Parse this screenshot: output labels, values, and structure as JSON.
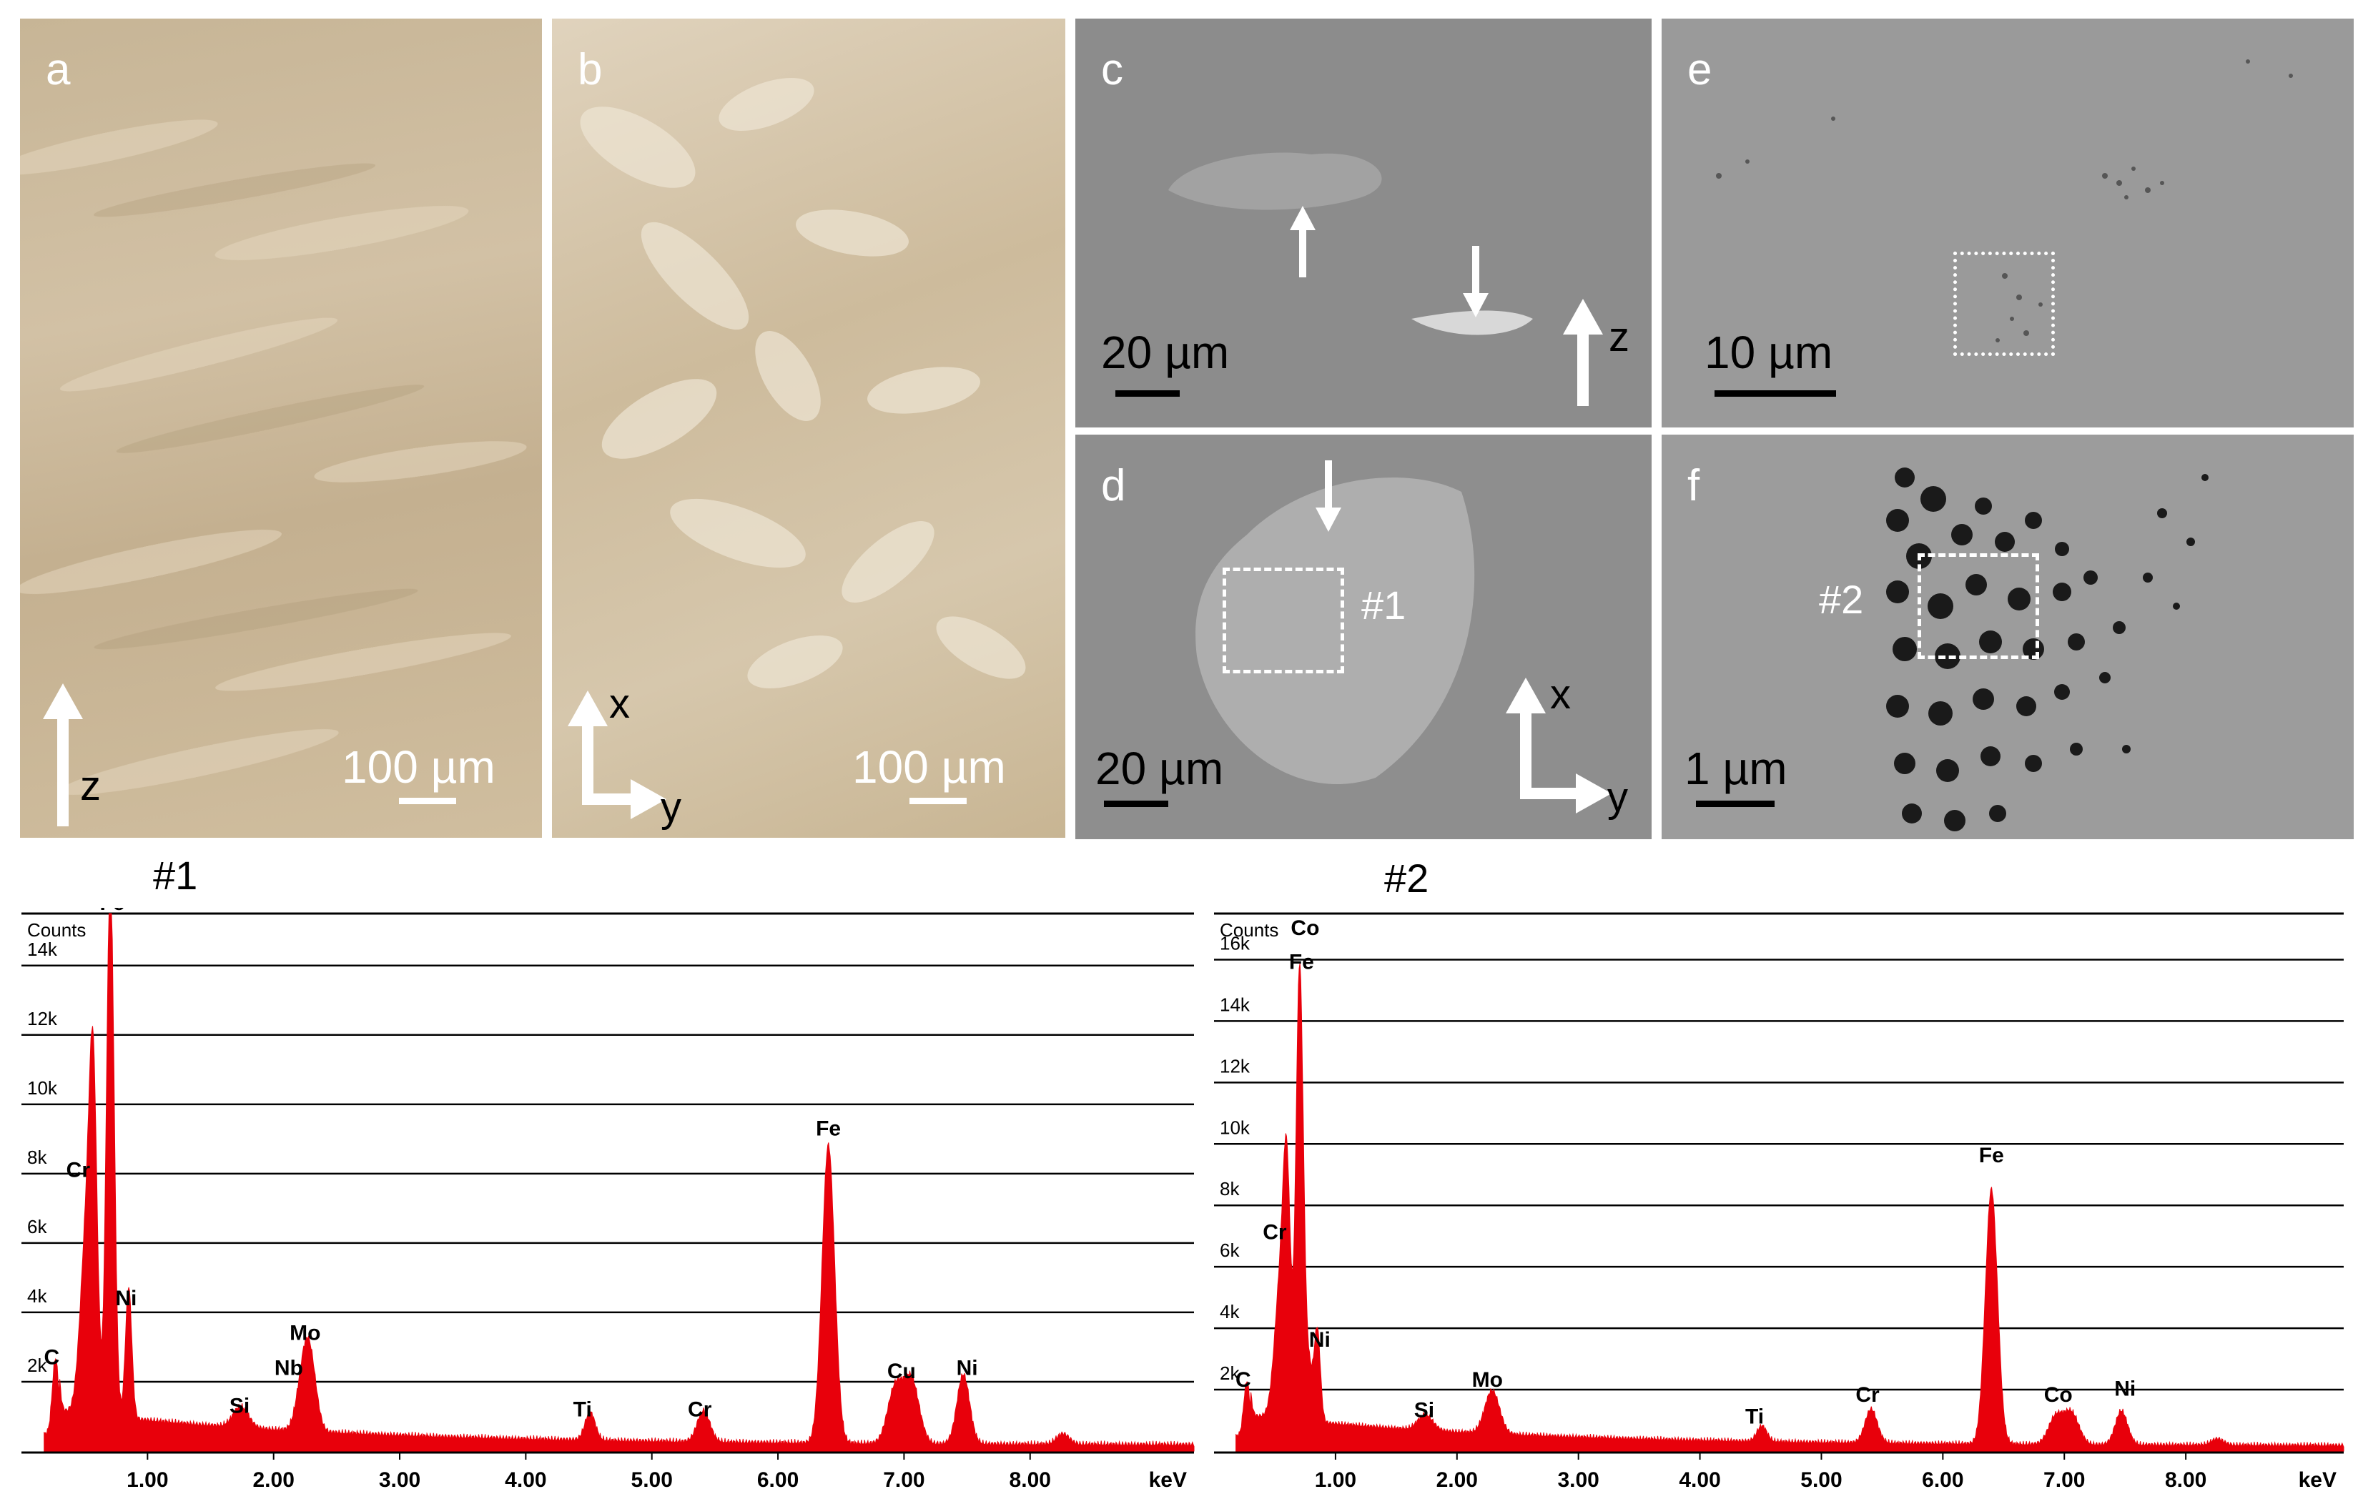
{
  "panels": {
    "a": {
      "label": "a",
      "scale": "100 µm",
      "axis_z": "z"
    },
    "b": {
      "label": "b",
      "scale": "100 µm",
      "axis_x": "x",
      "axis_y": "y"
    },
    "c": {
      "label": "c",
      "scale": "20 µm",
      "axis_z": "z"
    },
    "d": {
      "label": "d",
      "scale": "20 µm",
      "axis_x": "x",
      "axis_y": "y",
      "region": "#1"
    },
    "e": {
      "label": "e",
      "scale": "10 µm"
    },
    "f": {
      "label": "f",
      "scale": "1 µm",
      "region": "#2"
    }
  },
  "colors": {
    "spectrum": "#e8000b",
    "optical": "#cdb99a",
    "sem": "#8e8e8e"
  },
  "chart_data": [
    {
      "type": "area",
      "title": "#1",
      "ylabel": "Counts",
      "xlabel": "keV",
      "xlim": [
        0,
        9.3
      ],
      "ylim": [
        0,
        15.5
      ],
      "y_unit": "k",
      "y_ticks": [
        "2k",
        "4k",
        "6k",
        "8k",
        "10k",
        "12k",
        "14k"
      ],
      "y_tick_values": [
        2,
        4,
        6,
        8,
        10,
        12,
        14
      ],
      "x_ticks": [
        "1.00",
        "2.00",
        "3.00",
        "4.00",
        "5.00",
        "6.00",
        "7.00",
        "8.00"
      ],
      "x_tick_values": [
        1,
        2,
        3,
        4,
        5,
        6,
        7,
        8
      ],
      "peaks": [
        {
          "x": 0.27,
          "y": 2.2,
          "w": 0.025
        },
        {
          "x": 0.52,
          "y": 5.5,
          "w": 0.05
        },
        {
          "x": 0.57,
          "y": 7.6,
          "w": 0.03
        },
        {
          "x": 0.705,
          "y": 15.7,
          "w": 0.03
        },
        {
          "x": 0.85,
          "y": 3.8,
          "w": 0.025
        },
        {
          "x": 1.74,
          "y": 0.6,
          "w": 0.06
        },
        {
          "x": 2.23,
          "y": 1.3,
          "w": 0.05
        },
        {
          "x": 2.29,
          "y": 1.9,
          "w": 0.05
        },
        {
          "x": 4.51,
          "y": 0.8,
          "w": 0.04
        },
        {
          "x": 5.41,
          "y": 0.9,
          "w": 0.05
        },
        {
          "x": 6.4,
          "y": 8.6,
          "w": 0.05
        },
        {
          "x": 6.93,
          "y": 1.6,
          "w": 0.06
        },
        {
          "x": 7.06,
          "y": 1.8,
          "w": 0.06
        },
        {
          "x": 7.47,
          "y": 2.0,
          "w": 0.05
        },
        {
          "x": 8.26,
          "y": 0.3,
          "w": 0.05
        }
      ],
      "annotations": [
        {
          "text": "Fe",
          "x": 0.72,
          "y": 15.6
        },
        {
          "text": "Cr",
          "x": 0.45,
          "y": 7.9
        },
        {
          "text": "Ni",
          "x": 0.83,
          "y": 4.2
        },
        {
          "text": "C",
          "x": 0.24,
          "y": 2.5
        },
        {
          "text": "Si",
          "x": 1.73,
          "y": 1.1
        },
        {
          "text": "Mo",
          "x": 2.25,
          "y": 3.2
        },
        {
          "text": "Nb",
          "x": 2.12,
          "y": 2.2
        },
        {
          "text": "Ti",
          "x": 4.45,
          "y": 1.0
        },
        {
          "text": "Cr",
          "x": 5.38,
          "y": 1.0
        },
        {
          "text": "Fe",
          "x": 6.4,
          "y": 9.1
        },
        {
          "text": "Cu",
          "x": 6.98,
          "y": 2.1
        },
        {
          "text": "Ni",
          "x": 7.5,
          "y": 2.2
        }
      ]
    },
    {
      "type": "area",
      "title": "#2",
      "ylabel": "Counts",
      "xlabel": "keV",
      "xlim": [
        0,
        9.3
      ],
      "ylim": [
        0,
        17.5
      ],
      "y_unit": "k",
      "y_ticks": [
        "2k",
        "4k",
        "6k",
        "8k",
        "10k",
        "12k",
        "14k",
        "16k"
      ],
      "y_tick_values": [
        2,
        4,
        6,
        8,
        10,
        12,
        14,
        16
      ],
      "x_ticks": [
        "1.00",
        "2.00",
        "3.00",
        "4.00",
        "5.00",
        "6.00",
        "7.00",
        "8.00"
      ],
      "x_tick_values": [
        1,
        2,
        3,
        4,
        5,
        6,
        7,
        8
      ],
      "peaks": [
        {
          "x": 0.27,
          "y": 1.8,
          "w": 0.025
        },
        {
          "x": 0.55,
          "y": 4.5,
          "w": 0.05
        },
        {
          "x": 0.6,
          "y": 6.3,
          "w": 0.03
        },
        {
          "x": 0.705,
          "y": 14.8,
          "w": 0.03
        },
        {
          "x": 0.85,
          "y": 3.0,
          "w": 0.025
        },
        {
          "x": 0.78,
          "y": 1.7,
          "w": 0.03
        },
        {
          "x": 1.74,
          "y": 0.5,
          "w": 0.06
        },
        {
          "x": 2.29,
          "y": 1.4,
          "w": 0.06
        },
        {
          "x": 4.51,
          "y": 0.5,
          "w": 0.04
        },
        {
          "x": 5.41,
          "y": 1.1,
          "w": 0.05
        },
        {
          "x": 6.4,
          "y": 8.3,
          "w": 0.05
        },
        {
          "x": 6.93,
          "y": 0.9,
          "w": 0.06
        },
        {
          "x": 7.06,
          "y": 1.0,
          "w": 0.06
        },
        {
          "x": 7.47,
          "y": 1.1,
          "w": 0.05
        },
        {
          "x": 8.26,
          "y": 0.2,
          "w": 0.05
        }
      ],
      "annotations": [
        {
          "text": "Co",
          "x": 0.75,
          "y": 16.8
        },
        {
          "text": "Fe",
          "x": 0.72,
          "y": 15.7
        },
        {
          "text": "Cr",
          "x": 0.5,
          "y": 6.9
        },
        {
          "text": "Ni",
          "x": 0.87,
          "y": 3.4
        },
        {
          "text": "C",
          "x": 0.24,
          "y": 2.1
        },
        {
          "text": "Si",
          "x": 1.73,
          "y": 1.1
        },
        {
          "text": "Mo",
          "x": 2.25,
          "y": 2.1
        },
        {
          "text": "Ti",
          "x": 4.45,
          "y": 0.9
        },
        {
          "text": "Cr",
          "x": 5.38,
          "y": 1.6
        },
        {
          "text": "Fe",
          "x": 6.4,
          "y": 9.4
        },
        {
          "text": "Co",
          "x": 6.95,
          "y": 1.6
        },
        {
          "text": "Ni",
          "x": 7.5,
          "y": 1.8
        }
      ]
    }
  ]
}
